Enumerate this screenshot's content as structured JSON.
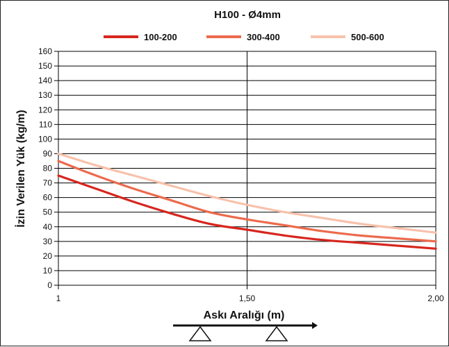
{
  "chart_data": {
    "type": "line",
    "title": "H100 - Ø4mm",
    "xlabel": "Askı Aralığı (m)",
    "ylabel": "İzin Verilen Yük (kg/m)",
    "xlim": [
      1,
      2
    ],
    "ylim": [
      0,
      160
    ],
    "x_ticks": [
      {
        "value": 1,
        "label": "1"
      },
      {
        "value": 1.5,
        "label": "1,50"
      },
      {
        "value": 2,
        "label": "2,00"
      }
    ],
    "y_ticks": [
      0,
      10,
      20,
      30,
      40,
      50,
      60,
      70,
      80,
      90,
      100,
      110,
      120,
      130,
      140,
      150,
      160
    ],
    "grid": true,
    "legend_position": "top",
    "x": [
      1,
      1.1,
      1.2,
      1.3,
      1.4,
      1.5,
      1.6,
      1.7,
      1.8,
      1.9,
      2
    ],
    "series": [
      {
        "name": "100-200",
        "color": "#d7261e",
        "values": [
          75,
          66,
          57,
          49,
          42,
          38,
          34,
          31,
          29,
          27,
          25
        ]
      },
      {
        "name": "300-400",
        "color": "#ec6a4c",
        "values": [
          85,
          75,
          66,
          58,
          50,
          45,
          41,
          37,
          34,
          32,
          30
        ]
      },
      {
        "name": "500-600",
        "color": "#f8c1ab",
        "values": [
          90,
          82,
          75,
          68,
          61,
          55,
          50,
          46,
          42,
          39,
          36
        ]
      }
    ]
  }
}
